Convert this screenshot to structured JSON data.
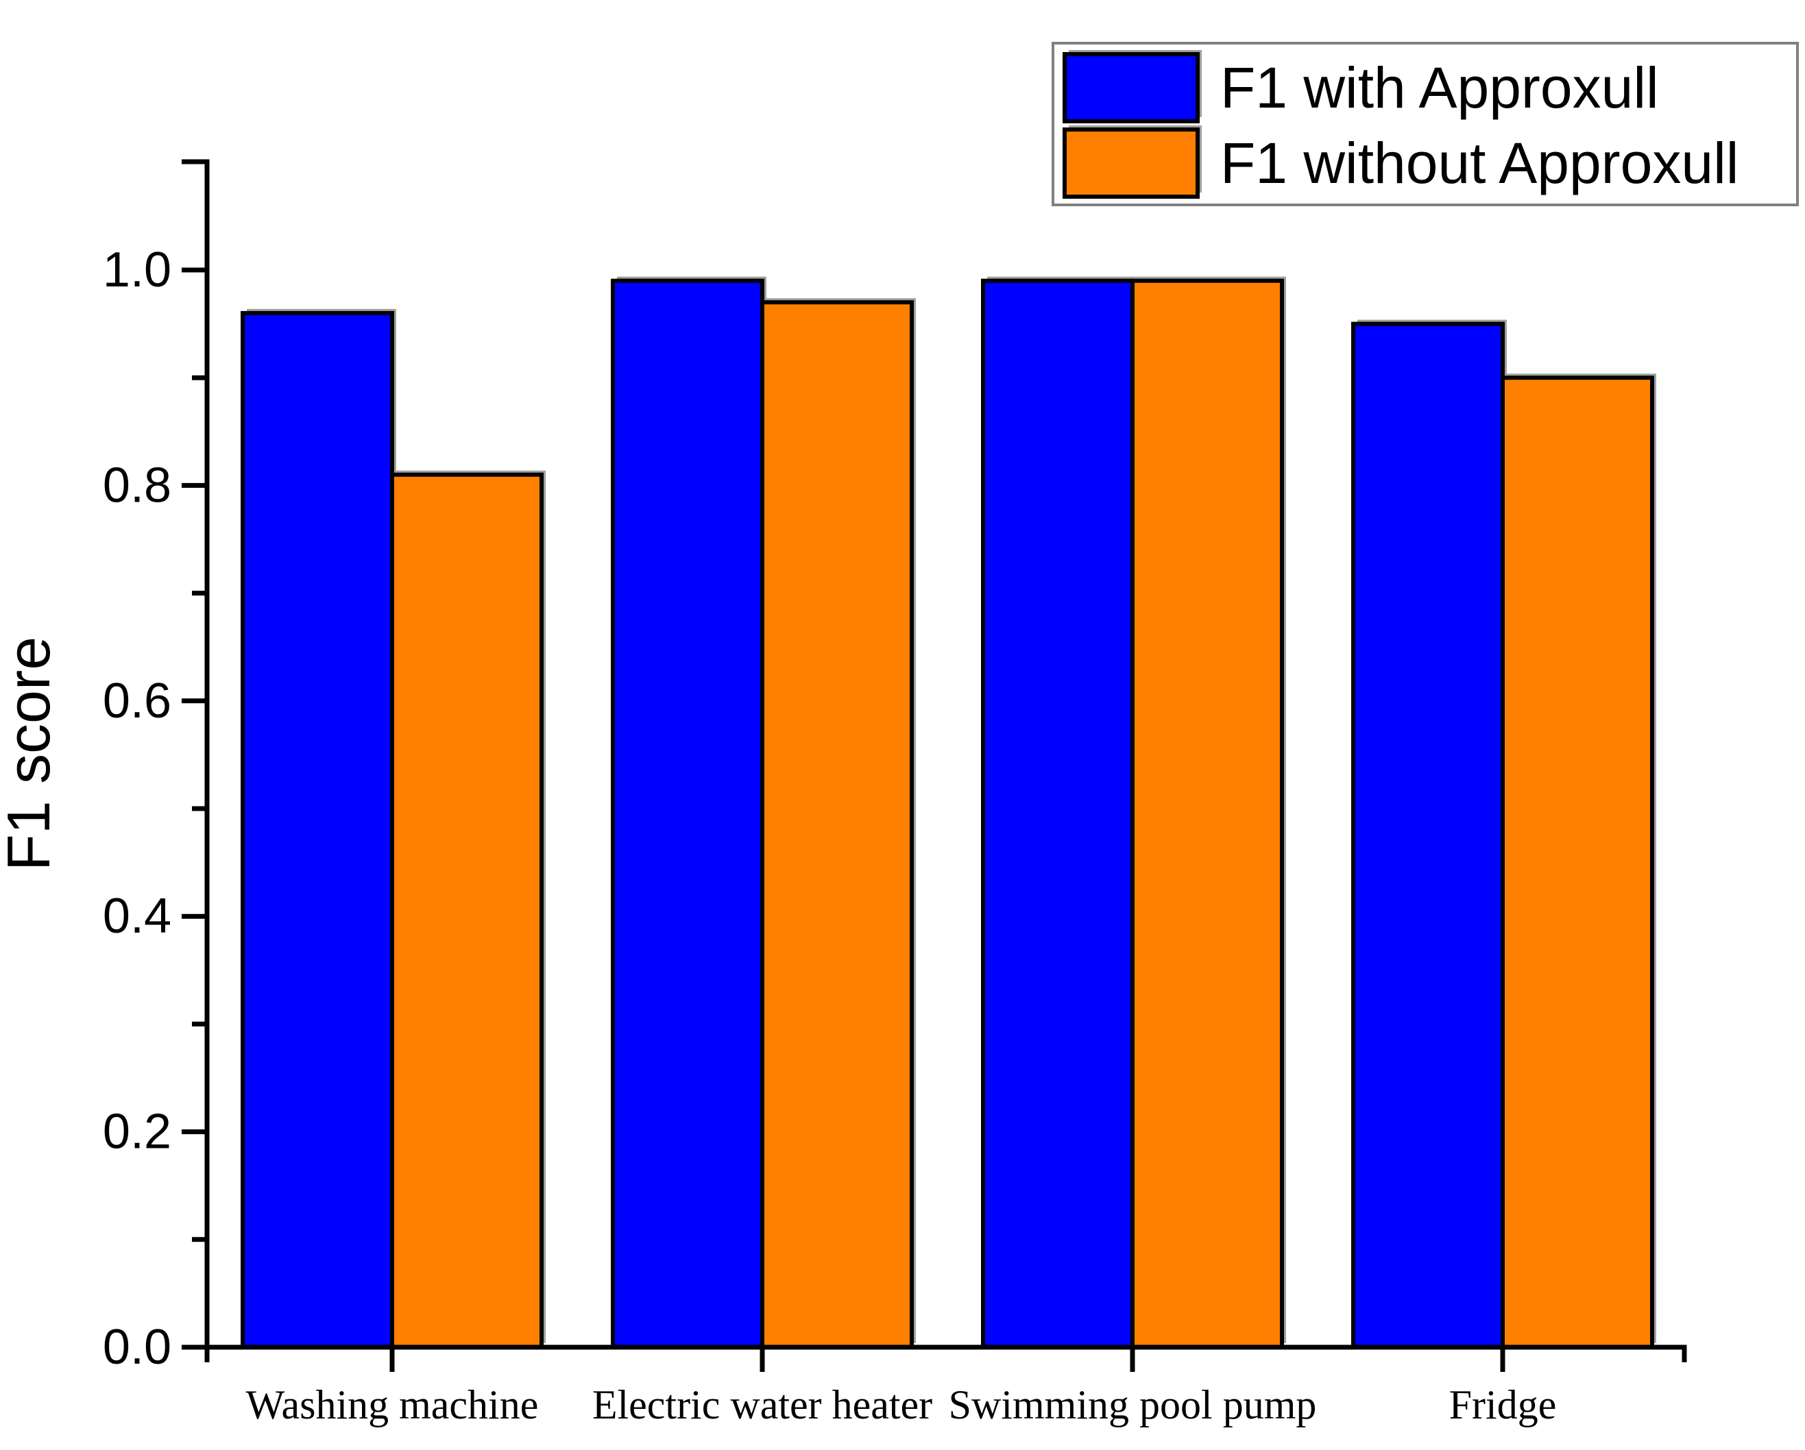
{
  "chart_data": {
    "type": "bar",
    "title": "",
    "xlabel": "",
    "ylabel": "F1 score",
    "ylim": [
      0.0,
      1.1
    ],
    "grid": false,
    "legend_position": "top-right",
    "categories": [
      "Washing machine",
      "Electric water heater",
      "Swimming pool pump",
      "Fridge"
    ],
    "series": [
      {
        "name": "F1 with Approxull",
        "color": "#0000FF",
        "values": [
          0.96,
          0.99,
          0.99,
          0.95
        ]
      },
      {
        "name": "F1 without Approxull",
        "color": "#FF8000",
        "values": [
          0.81,
          0.97,
          0.99,
          0.9
        ]
      }
    ],
    "yticks_major": [
      0.0,
      0.2,
      0.4,
      0.6,
      0.8,
      1.0
    ],
    "ytick_labels": [
      "0.0",
      "0.2",
      "0.4",
      "0.6",
      "0.8",
      "1.0"
    ],
    "yticks_minor": [
      0.1,
      0.3,
      0.5,
      0.7,
      0.9
    ],
    "bar_outline_color": "#000000",
    "bar_shadow_color": "#a0a0a0",
    "axis_color": "#000000",
    "legend_border_color": "#808080",
    "text_color": "#000000"
  }
}
